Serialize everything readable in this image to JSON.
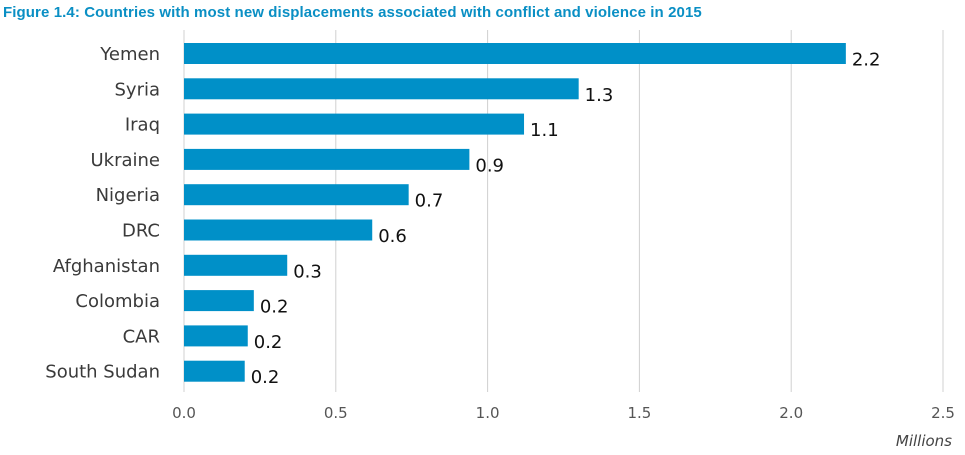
{
  "chart_data": {
    "type": "bar",
    "orientation": "horizontal",
    "title": "Figure 1.4: Countries with most new displacements associated with conflict and violence in 2015",
    "xlabel": "Millions",
    "ylabel": "",
    "categories": [
      "Yemen",
      "Syria",
      "Iraq",
      "Ukraine",
      "Nigeria",
      "DRC",
      "Afghanistan",
      "Colombia",
      "CAR",
      "South Sudan"
    ],
    "values": [
      2.18,
      1.3,
      1.12,
      0.94,
      0.74,
      0.62,
      0.34,
      0.23,
      0.21,
      0.2
    ],
    "data_labels": [
      "2.2",
      "1.3",
      "1.1",
      "0.9",
      "0.7",
      "0.6",
      "0.3",
      "0.2",
      "0.2",
      "0.2"
    ],
    "xlim": [
      0,
      2.5
    ],
    "x_ticks": [
      "0.0",
      "0.5",
      "1.0",
      "1.5",
      "2.0",
      "2.5"
    ],
    "grid": "vertical",
    "legend": "none",
    "bar_color": "#0090c8",
    "title_color": "#0a8fc4",
    "grid_color": "#d0d0d0"
  }
}
